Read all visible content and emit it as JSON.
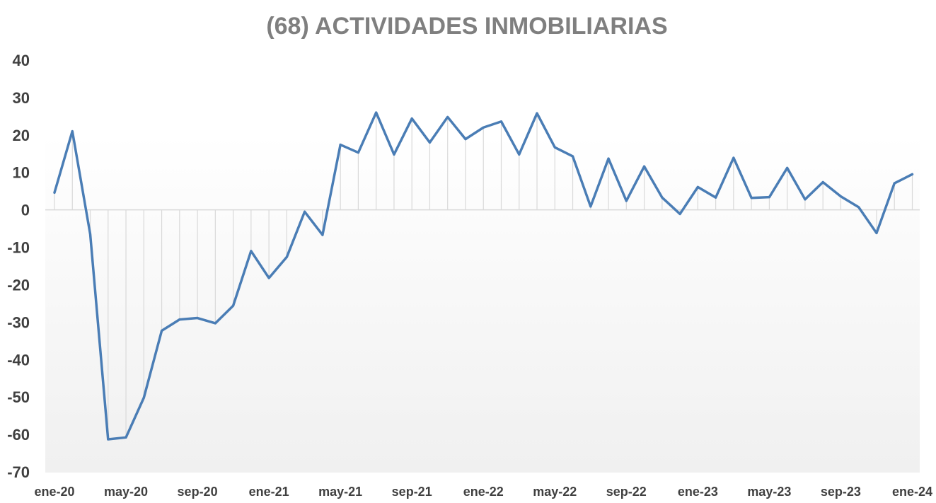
{
  "chart_data": {
    "type": "line",
    "title": "(68) ACTIVIDADES INMOBILIARIAS",
    "xlabel": "",
    "ylabel": "",
    "ylim": [
      -70,
      40
    ],
    "yticks": [
      40,
      30,
      20,
      10,
      0,
      -10,
      -20,
      -30,
      -40,
      -50,
      -60,
      -70
    ],
    "x_tick_labels": [
      "ene-20",
      "may-20",
      "sep-20",
      "ene-21",
      "may-21",
      "sep-21",
      "ene-22",
      "may-22",
      "sep-22",
      "ene-23",
      "may-23",
      "sep-23",
      "ene-24"
    ],
    "x_tick_every": 4,
    "grid": false,
    "drop_lines": true,
    "legend": "none",
    "series": [
      {
        "color": "#4a7db5",
        "values": [
          4.6,
          21.0,
          -6.5,
          -61.3,
          -60.8,
          -50.2,
          -32.3,
          -29.3,
          -28.9,
          -30.3,
          -25.6,
          -11.0,
          -18.2,
          -12.6,
          -0.5,
          -6.7,
          17.4,
          15.3,
          26.0,
          14.8,
          24.4,
          18.0,
          24.8,
          18.9,
          22.0,
          23.6,
          14.8,
          25.8,
          16.7,
          14.3,
          0.9,
          13.7,
          2.4,
          11.6,
          3.3,
          -1.1,
          6.1,
          3.3,
          13.9,
          3.2,
          3.4,
          11.2,
          2.8,
          7.4,
          3.6,
          0.7,
          -6.2,
          7.1,
          9.5
        ]
      }
    ],
    "colors": {
      "line": "#4a7db5",
      "drop_line": "#d9d9d9",
      "axis": "#d9d9d9",
      "title": "#7f7f7f",
      "tick_text": "#404040"
    }
  }
}
